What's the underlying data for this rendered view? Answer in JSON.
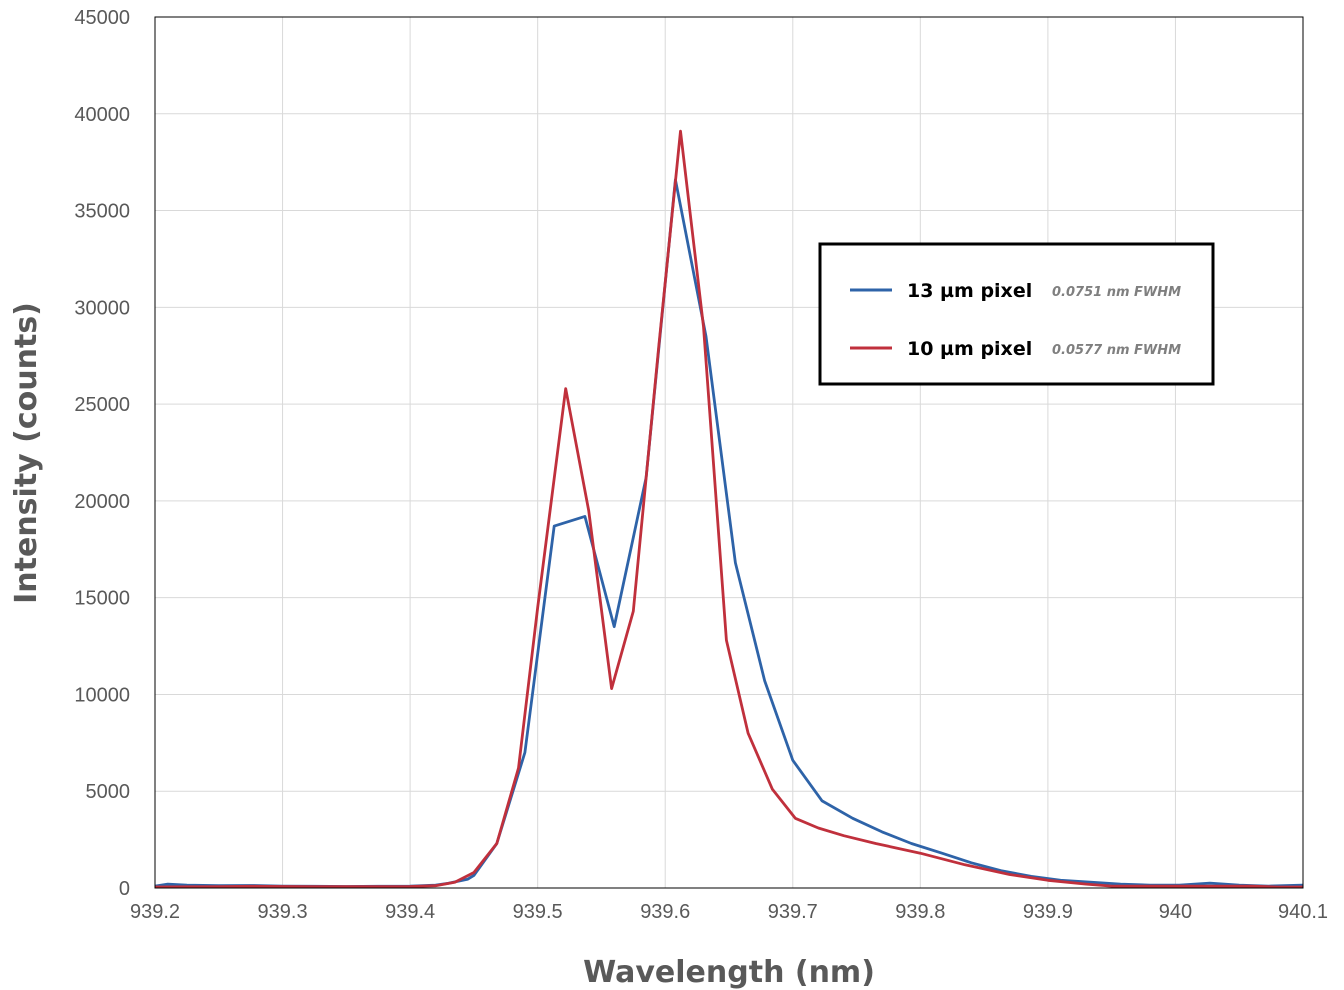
{
  "chart_data": {
    "type": "line",
    "xlabel": "Wavelength (nm)",
    "ylabel": "Intensity (counts)",
    "xlim": [
      939.2,
      940.1
    ],
    "ylim": [
      0,
      45000
    ],
    "x_ticks": [
      "939.2",
      "939.3",
      "939.4",
      "939.5",
      "939.6",
      "939.7",
      "939.8",
      "939.9",
      "940",
      "940.1"
    ],
    "y_ticks": [
      "0",
      "5000",
      "10000",
      "15000",
      "20000",
      "25000",
      "30000",
      "35000",
      "40000",
      "45000"
    ],
    "grid": true,
    "legend_position": "top-right",
    "series": [
      {
        "name": "13 µm pixel",
        "note": "0.0751 nm FWHM",
        "color": "#2e63a8",
        "x": [
          939.2,
          939.21,
          939.225,
          939.25,
          939.275,
          939.3,
          939.325,
          939.35,
          939.375,
          939.4,
          939.42,
          939.43,
          939.445,
          939.45,
          939.468,
          939.49,
          939.513,
          939.537,
          939.56,
          939.585,
          939.608,
          939.632,
          939.655,
          939.678,
          939.7,
          939.723,
          939.747,
          939.77,
          939.793,
          939.817,
          939.84,
          939.863,
          939.887,
          939.91,
          939.933,
          939.957,
          939.98,
          940.003,
          940.027,
          940.05,
          940.073,
          940.1
        ],
        "values": [
          100,
          200,
          150,
          120,
          130,
          100,
          90,
          80,
          90,
          100,
          150,
          250,
          450,
          650,
          2300,
          7000,
          18700,
          19200,
          13500,
          21200,
          36600,
          28500,
          16800,
          10700,
          6600,
          4500,
          3600,
          2900,
          2300,
          1800,
          1300,
          900,
          600,
          400,
          300,
          200,
          150,
          150,
          250,
          150,
          100,
          150
        ]
      },
      {
        "name": "10 µm pixel",
        "note": "0.0577 nm FWHM",
        "color": "#c0303c",
        "x": [
          939.2,
          939.225,
          939.25,
          939.275,
          939.3,
          939.325,
          939.35,
          939.375,
          939.4,
          939.42,
          939.435,
          939.45,
          939.468,
          939.485,
          939.5,
          939.522,
          939.54,
          939.558,
          939.575,
          939.595,
          939.612,
          939.63,
          939.648,
          939.665,
          939.684,
          939.702,
          939.72,
          939.74,
          939.765,
          939.8,
          939.835,
          939.87,
          939.9,
          939.93,
          939.95,
          939.975,
          940,
          940.03,
          940.06,
          940.08,
          940.1
        ],
        "values": [
          50,
          60,
          70,
          90,
          80,
          70,
          70,
          70,
          80,
          120,
          300,
          800,
          2300,
          6200,
          14500,
          25800,
          19500,
          10300,
          14300,
          28000,
          39100,
          29000,
          12800,
          8000,
          5100,
          3600,
          3100,
          2700,
          2300,
          1800,
          1200,
          700,
          400,
          200,
          100,
          100,
          100,
          100,
          100,
          50,
          50
        ]
      }
    ]
  }
}
